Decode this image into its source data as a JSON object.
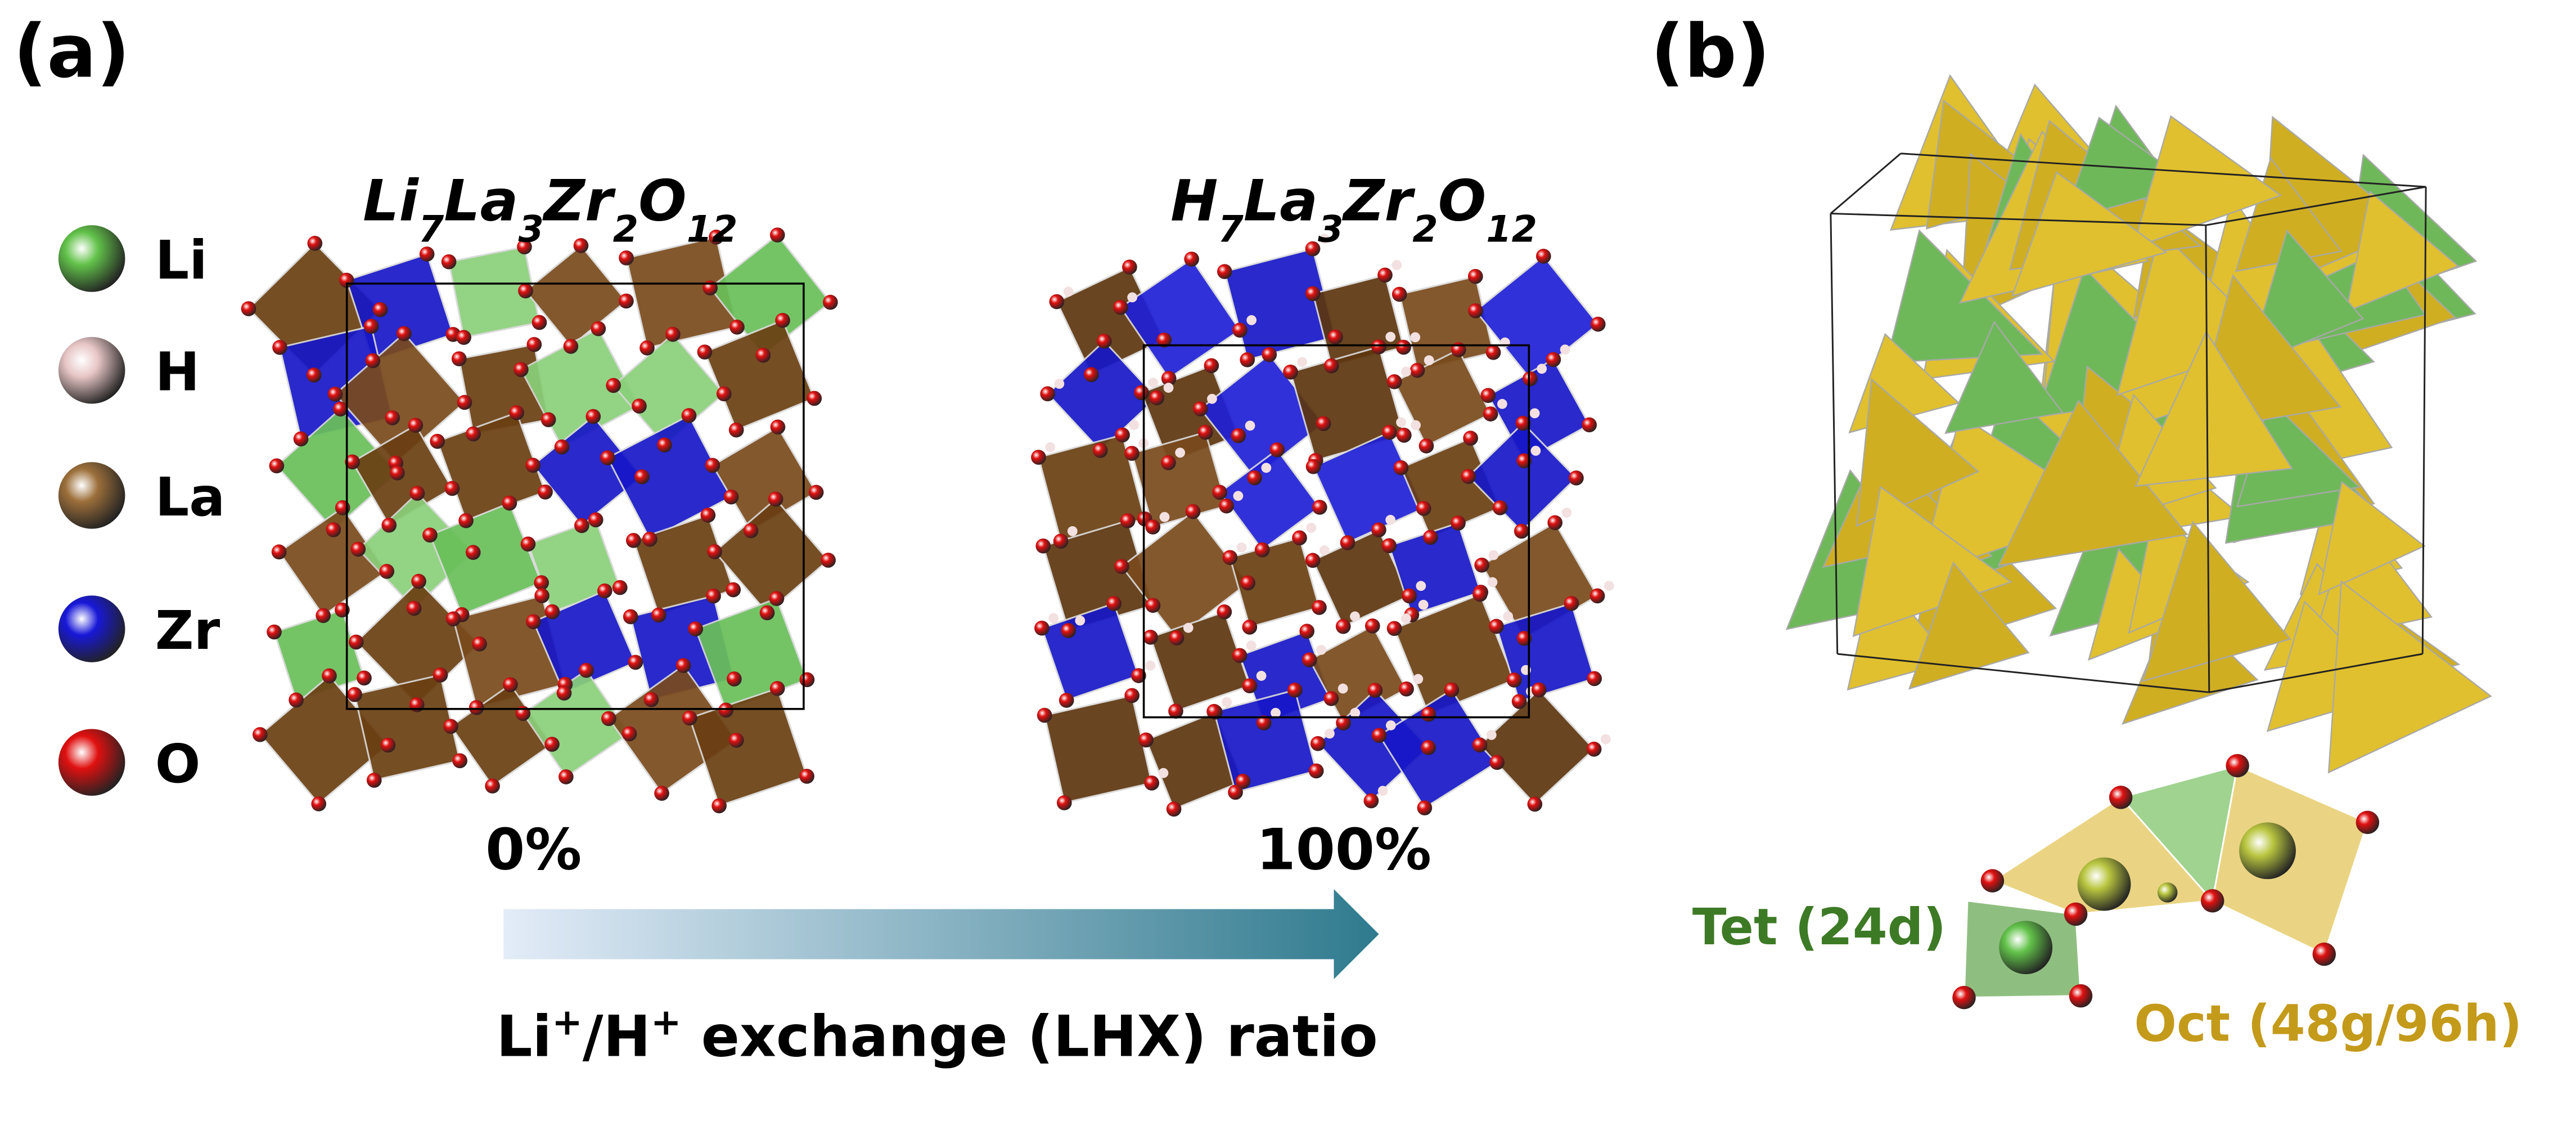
{
  "panel_a": {
    "label": "(a)",
    "legend": [
      "Li",
      "H",
      "La",
      "Zr",
      "O"
    ],
    "structures": [
      {
        "formula": [
          {
            "symbol": "Li",
            "count": "7"
          },
          {
            "symbol": "La",
            "count": "3"
          },
          {
            "symbol": "Zr",
            "count": "2"
          },
          {
            "symbol": "O",
            "count": "12"
          }
        ],
        "ratio": "0%"
      },
      {
        "formula": [
          {
            "symbol": "H",
            "count": "7"
          },
          {
            "symbol": "La",
            "count": "3"
          },
          {
            "symbol": "Zr",
            "count": "2"
          },
          {
            "symbol": "O",
            "count": "12"
          }
        ],
        "ratio": "100%"
      }
    ],
    "axis_label": [
      {
        "text": "Li",
        "sup": "+"
      },
      {
        "text": "/H",
        "sup": "+"
      },
      {
        "text": " exchange (LHX) ratio"
      }
    ]
  },
  "panel_b": {
    "label": "(b)",
    "sites": [
      "Tet (24d)",
      "Oct (48g/96h)"
    ]
  }
}
